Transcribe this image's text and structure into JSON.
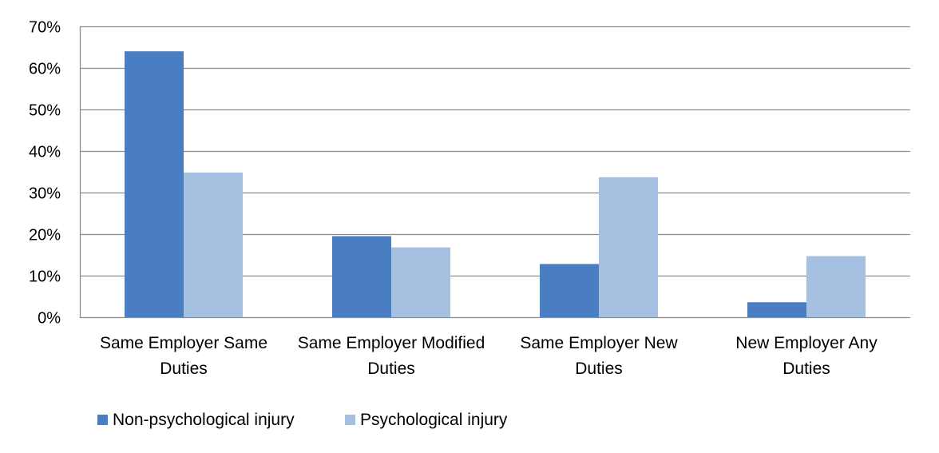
{
  "chart_data": {
    "type": "bar",
    "categories": [
      [
        "Same Employer Same",
        "Duties"
      ],
      [
        "Same Employer Modified",
        "Duties"
      ],
      [
        "Same Employer New",
        "Duties"
      ],
      [
        "New Employer Any",
        "Duties"
      ]
    ],
    "series": [
      {
        "name": "Non-psychological injury",
        "values": [
          64,
          19.5,
          12.8,
          3.6
        ],
        "color": "#4A7EC2"
      },
      {
        "name": "Psychological injury",
        "values": [
          34.8,
          16.8,
          33.7,
          14.7
        ],
        "color": "#A5C0E1"
      }
    ],
    "ylim": [
      0,
      70
    ],
    "yticks": [
      0,
      10,
      20,
      30,
      40,
      50,
      60,
      70
    ],
    "ytick_labels": [
      "0%",
      "10%",
      "20%",
      "30%",
      "40%",
      "50%",
      "60%",
      "70%"
    ],
    "grid": true,
    "legend_position": "bottom-left",
    "colors": {
      "grid": "#8C8C8C",
      "text": "#000000"
    }
  }
}
